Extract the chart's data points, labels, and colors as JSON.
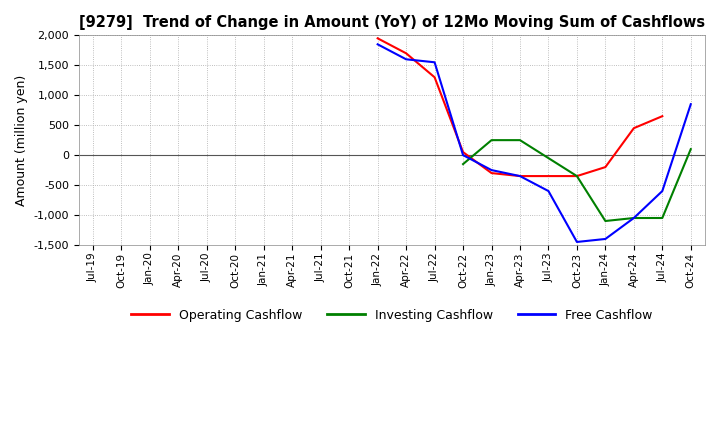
{
  "title": "[9279]  Trend of Change in Amount (YoY) of 12Mo Moving Sum of Cashflows",
  "ylabel": "Amount (million yen)",
  "ylim": [
    -1500,
    2000
  ],
  "yticks": [
    -1500,
    -1000,
    -500,
    0,
    500,
    1000,
    1500,
    2000
  ],
  "background_color": "#ffffff",
  "grid_color": "#aaaaaa",
  "dates": [
    "Jul-19",
    "Oct-19",
    "Jan-20",
    "Apr-20",
    "Jul-20",
    "Oct-20",
    "Jan-21",
    "Apr-21",
    "Jul-21",
    "Oct-21",
    "Jan-22",
    "Apr-22",
    "Jul-22",
    "Oct-22",
    "Jan-23",
    "Apr-23",
    "Jul-23",
    "Oct-23",
    "Jan-24",
    "Apr-24",
    "Jul-24",
    "Oct-24"
  ],
  "operating_cashflow": [
    null,
    null,
    null,
    null,
    null,
    null,
    null,
    null,
    null,
    null,
    1950,
    1700,
    1300,
    50,
    -300,
    -350,
    -350,
    -350,
    -200,
    450,
    650,
    null
  ],
  "investing_cashflow": [
    null,
    null,
    null,
    null,
    null,
    null,
    null,
    null,
    null,
    null,
    null,
    null,
    null,
    -150,
    250,
    250,
    -50,
    -350,
    -1100,
    -1050,
    -1050,
    100
  ],
  "free_cashflow": [
    null,
    null,
    null,
    null,
    null,
    null,
    null,
    null,
    null,
    null,
    1850,
    1600,
    1550,
    0,
    -250,
    -350,
    -600,
    -1450,
    -1400,
    -1050,
    -600,
    850
  ],
  "line_colors": {
    "operating": "#ff0000",
    "investing": "#008000",
    "free": "#0000ff"
  },
  "line_width": 1.5
}
